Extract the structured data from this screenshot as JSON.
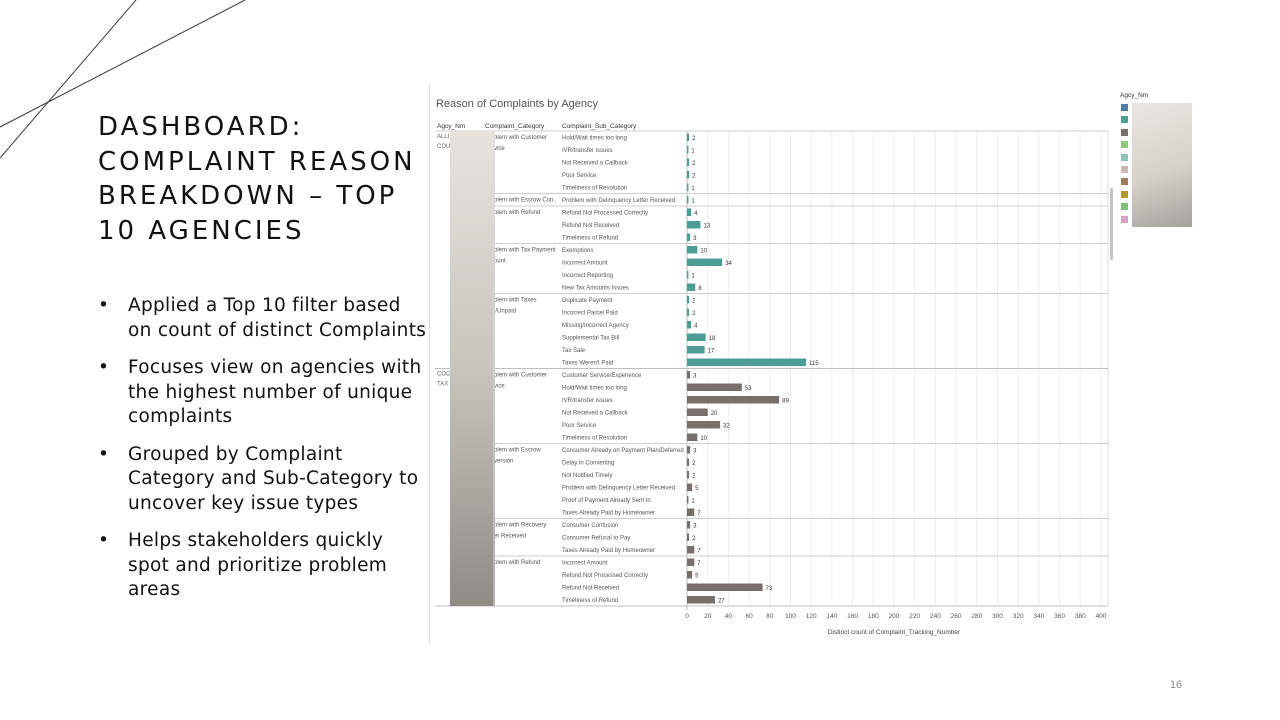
{
  "slide": {
    "title": "DASHBOARD: COMPLAINT REASON BREAKDOWN – TOP 10 AGENCIES",
    "bullets": [
      "Applied a Top 10 filter based on count of distinct Complaints",
      "Focuses view on agencies with the highest number of unique complaints",
      "Grouped by Complaint Category and Sub-Category to uncover key issue types",
      "Helps stakeholders quickly spot and prioritize problem areas"
    ],
    "page_number": "16"
  },
  "legend": {
    "title": "Agcy_Nm",
    "colors": [
      "#4e79a7",
      "#4e9c96",
      "#79706e",
      "#8cc97a",
      "#8bc4b7",
      "#cdb9b2",
      "#9c7b5a",
      "#b6992d",
      "#7fc07a",
      "#d7a2c6"
    ]
  },
  "colors": {
    "teal": "#4e9c96",
    "gray": "#79706e"
  },
  "chart_data": {
    "type": "bar",
    "orientation": "horizontal",
    "title": "Reason of Complaints by Agency",
    "column_headers": [
      "Agcy_Nm",
      "Complaint_Category",
      "Complaint_Sub_Category"
    ],
    "xlabel": "Distinct count of Complaint_Tracking_Number",
    "xlim": [
      0,
      400
    ],
    "xticks": [
      0,
      20,
      40,
      60,
      80,
      100,
      120,
      140,
      160,
      180,
      200,
      220,
      240,
      260,
      280,
      300,
      320,
      340,
      360,
      380,
      400
    ],
    "grid": true,
    "agencies": [
      {
        "name": [
          "ALLI",
          "COU"
        ],
        "color": "#4e9c96",
        "categories": [
          {
            "label": [
              "blem with Customer",
              "vice"
            ],
            "rows": [
              {
                "sub": "Hold/Wait times too long",
                "value": 2
              },
              {
                "sub": "IVR/transfer issues",
                "value": 1
              },
              {
                "sub": "Not Received a Callback",
                "value": 2
              },
              {
                "sub": "Poor Service",
                "value": 2
              },
              {
                "sub": "Timeliness of Resolution",
                "value": 1
              }
            ]
          },
          {
            "label": [
              "blem with Escrow Con.."
            ],
            "rows": [
              {
                "sub": "Problem with Delinquency Letter Received",
                "value": 1
              }
            ]
          },
          {
            "label": [
              "blem with Refund"
            ],
            "rows": [
              {
                "sub": "Refund Not Processed Correctly",
                "value": 4
              },
              {
                "sub": "Refund Not Received",
                "value": 13
              },
              {
                "sub": "Timeliness of Refund",
                "value": 3
              }
            ]
          },
          {
            "label": [
              "blem with Tax Payment",
              "ount"
            ],
            "rows": [
              {
                "sub": "Exemptions",
                "value": 10
              },
              {
                "sub": "Incorrect Amount",
                "value": 34
              },
              {
                "sub": "Incorrect Reporting",
                "value": 1
              },
              {
                "sub": "New Tax Amounts Issues",
                "value": 8
              }
            ]
          },
          {
            "label": [
              "blem with Taxes",
              "l/Unpaid"
            ],
            "rows": [
              {
                "sub": "Duplicate Payment",
                "value": 2
              },
              {
                "sub": "Incorrect Parcel Paid",
                "value": 2
              },
              {
                "sub": "Missing/Incorrect Agency",
                "value": 4
              },
              {
                "sub": "Supplemental Tax Bill",
                "value": 18
              },
              {
                "sub": "Tax Sale",
                "value": 17
              },
              {
                "sub": "Taxes Weren't Paid",
                "value": 115
              }
            ]
          }
        ]
      },
      {
        "name": [
          "COC",
          "TAX"
        ],
        "color": "#79706e",
        "categories": [
          {
            "label": [
              "blem with Customer",
              "vice"
            ],
            "rows": [
              {
                "sub": "Customer Service/Experience",
                "value": 3
              },
              {
                "sub": "Hold/Wait times too long",
                "value": 53
              },
              {
                "sub": "IVR/transfer issues",
                "value": 89
              },
              {
                "sub": "Not Received a Callback",
                "value": 20
              },
              {
                "sub": "Poor Service",
                "value": 32
              },
              {
                "sub": "Timeliness of Resolution",
                "value": 10
              }
            ]
          },
          {
            "label": [
              "blem with Escrow",
              "version"
            ],
            "rows": [
              {
                "sub": "Consumer Already on Payment Plan/Deferred",
                "value": 3
              },
              {
                "sub": "Delay in Converting",
                "value": 2
              },
              {
                "sub": "Not Notified Timely",
                "value": 2
              },
              {
                "sub": "Problem with Delinquency Letter Received",
                "value": 5
              },
              {
                "sub": "Proof of Payment Already Sent In",
                "value": 1
              },
              {
                "sub": "Taxes Already Paid by Homeowner",
                "value": 7
              }
            ]
          },
          {
            "label": [
              "blem with Recovery",
              "er Received"
            ],
            "rows": [
              {
                "sub": "Consumer Confusion",
                "value": 3
              },
              {
                "sub": "Consumer Refusal to Pay",
                "value": 2
              },
              {
                "sub": "Taxes Already Paid by Homeowner",
                "value": 7
              }
            ]
          },
          {
            "label": [
              "blem with Refund"
            ],
            "rows": [
              {
                "sub": "Incorrect Amount",
                "value": 7
              },
              {
                "sub": "Refund Not Processed Correctly",
                "value": 5
              },
              {
                "sub": "Refund Not Received",
                "value": 73
              },
              {
                "sub": "Timeliness of Refund",
                "value": 27
              }
            ]
          }
        ]
      }
    ]
  }
}
